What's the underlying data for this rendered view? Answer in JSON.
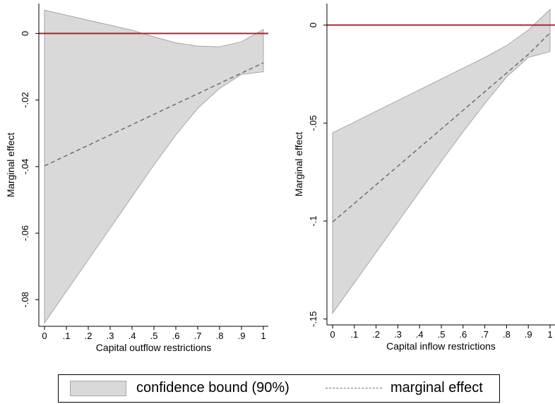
{
  "colors": {
    "band_fill": "#d9d9d9",
    "band_stroke": "#a6a6a6",
    "effect_line": "#6e6e6e",
    "zero_line": "#b0203a",
    "axis": "#000000"
  },
  "chart_data": [
    {
      "type": "area",
      "title": "",
      "xlabel": "Capital outflow restrictions",
      "ylabel": "Marginal effect",
      "xlim": [
        0,
        1
      ],
      "ylim": [
        -0.088,
        0.009
      ],
      "x_ticks": [
        "0",
        ".1",
        ".2",
        ".3",
        ".4",
        ".5",
        ".6",
        ".7",
        ".8",
        ".9",
        "1"
      ],
      "y_ticks": [
        {
          "value": 0,
          "label": "0"
        },
        {
          "value": -0.02,
          "label": "-.02"
        },
        {
          "value": -0.04,
          "label": "-.04"
        },
        {
          "value": -0.06,
          "label": "-.06"
        },
        {
          "value": -0.08,
          "label": "-.08"
        }
      ],
      "reference_line_y": 0,
      "x": [
        0,
        0.1,
        0.2,
        0.3,
        0.4,
        0.5,
        0.6,
        0.7,
        0.8,
        0.9,
        1.0
      ],
      "series": [
        {
          "name": "confidence bound (90%)",
          "kind": "band",
          "upper": [
            0.007,
            0.0055,
            0.004,
            0.0025,
            0.001,
            -0.001,
            -0.0028,
            -0.0038,
            -0.004,
            -0.0025,
            0.0012
          ],
          "lower": [
            -0.087,
            -0.0775,
            -0.068,
            -0.0585,
            -0.049,
            -0.0395,
            -0.0305,
            -0.0225,
            -0.0165,
            -0.0123,
            -0.0115
          ]
        },
        {
          "name": "marginal effect",
          "kind": "line",
          "values": [
            -0.0398,
            -0.0367,
            -0.0336,
            -0.0305,
            -0.0274,
            -0.0243,
            -0.0212,
            -0.0181,
            -0.015,
            -0.0119,
            -0.0088
          ]
        }
      ],
      "grid": false
    },
    {
      "type": "area",
      "title": "",
      "xlabel": "Capital inflow restrictions",
      "ylabel": "Marginal effect",
      "xlim": [
        0,
        1
      ],
      "ylim": [
        -0.153,
        0.011
      ],
      "x_ticks": [
        "0",
        ".1",
        ".2",
        ".3",
        ".4",
        ".5",
        ".6",
        ".7",
        ".8",
        ".9",
        "1"
      ],
      "y_ticks": [
        {
          "value": 0,
          "label": "0"
        },
        {
          "value": -0.05,
          "label": "-.05"
        },
        {
          "value": -0.1,
          "label": "-.1"
        },
        {
          "value": -0.15,
          "label": "-.15"
        }
      ],
      "reference_line_y": 0,
      "x": [
        0,
        0.1,
        0.2,
        0.3,
        0.4,
        0.5,
        0.6,
        0.7,
        0.8,
        0.9,
        1.0
      ],
      "series": [
        {
          "name": "confidence bound (90%)",
          "kind": "band",
          "upper": [
            -0.055,
            -0.0495,
            -0.044,
            -0.0385,
            -0.033,
            -0.0275,
            -0.022,
            -0.0165,
            -0.0105,
            -0.0025,
            0.008
          ],
          "lower": [
            -0.147,
            -0.1315,
            -0.116,
            -0.1005,
            -0.085,
            -0.0695,
            -0.0545,
            -0.04,
            -0.0265,
            -0.0165,
            -0.0135
          ]
        },
        {
          "name": "marginal effect",
          "kind": "line",
          "values": [
            -0.1005,
            -0.091,
            -0.0815,
            -0.072,
            -0.0625,
            -0.053,
            -0.0435,
            -0.034,
            -0.0245,
            -0.015,
            -0.004
          ]
        }
      ],
      "grid": false
    }
  ],
  "legend": {
    "band_label": "confidence bound (90%)",
    "line_label": "marginal effect"
  }
}
